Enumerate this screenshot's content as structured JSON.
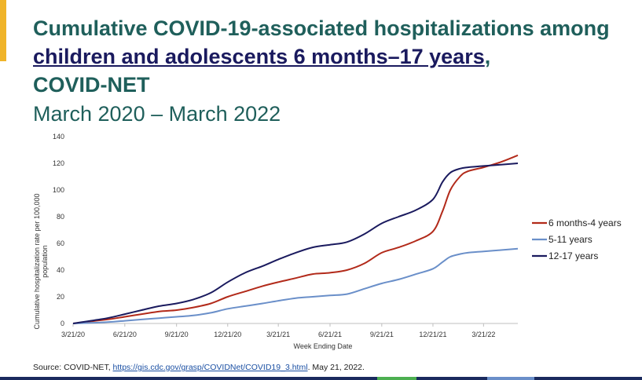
{
  "slide": {
    "title_part1": "Cumulative COVID-19-associated hospitalizations among ",
    "title_link": "children and adolescents 6 months–17 years",
    "title_part2": ",",
    "title_line3": "COVID-NET",
    "subtitle": "March 2020 – March 2022",
    "source_prefix": "Source: COVID-NET, ",
    "source_link": "https://gis.cdc.gov/grasp/COVIDNet/COVID19_3.html",
    "source_suffix": ". May 21, 2022."
  },
  "colors": {
    "title": "#1f5f5b",
    "accent": "#f0b429",
    "rule": "#1a2a5e"
  },
  "chart_data": {
    "type": "line",
    "xlabel": "Week Ending Date",
    "ylabel": "Cumulative hospitalization rate per 100,000 population",
    "ylim": [
      0,
      140
    ],
    "yticks": [
      0,
      20,
      40,
      60,
      80,
      100,
      120,
      140
    ],
    "xlim": [
      "2020-03-21",
      "2022-05-21"
    ],
    "xticks": [
      "3/21/20",
      "6/21/20",
      "9/21/20",
      "12/21/20",
      "3/21/21",
      "6/21/21",
      "9/21/21",
      "12/21/21",
      "3/21/22"
    ],
    "x": [
      "2020-03-21",
      "2020-05-21",
      "2020-06-21",
      "2020-07-21",
      "2020-08-21",
      "2020-09-21",
      "2020-10-21",
      "2020-11-21",
      "2020-12-21",
      "2021-01-21",
      "2021-02-21",
      "2021-03-21",
      "2021-04-21",
      "2021-05-21",
      "2021-06-21",
      "2021-07-21",
      "2021-08-21",
      "2021-09-21",
      "2021-10-21",
      "2021-11-21",
      "2021-12-21",
      "2022-01-07",
      "2022-01-21",
      "2022-02-07",
      "2022-02-21",
      "2022-03-21",
      "2022-04-21",
      "2022-05-21"
    ],
    "series": [
      {
        "name": "6 months-4 years",
        "color": "#b22a1a",
        "values": [
          0,
          3,
          5,
          7,
          9,
          10,
          12,
          15,
          20,
          24,
          28,
          31,
          34,
          37,
          38,
          40,
          45,
          53,
          57,
          62,
          69,
          84,
          100,
          110,
          114,
          117,
          121,
          126
        ]
      },
      {
        "name": "5-11 years",
        "color": "#6a8fc9",
        "values": [
          0,
          1,
          2,
          3,
          4,
          5,
          6,
          8,
          11,
          13,
          15,
          17,
          19,
          20,
          21,
          22,
          26,
          30,
          33,
          37,
          41,
          46,
          50,
          52,
          53,
          54,
          55,
          56
        ]
      },
      {
        "name": "12-17 years",
        "color": "#1a1a5e",
        "values": [
          0,
          4,
          7,
          10,
          13,
          15,
          18,
          23,
          31,
          38,
          43,
          48,
          53,
          57,
          59,
          61,
          67,
          75,
          80,
          85,
          93,
          106,
          113,
          116,
          117,
          118,
          119,
          120
        ]
      }
    ],
    "legend_position": "right",
    "grid": false
  }
}
